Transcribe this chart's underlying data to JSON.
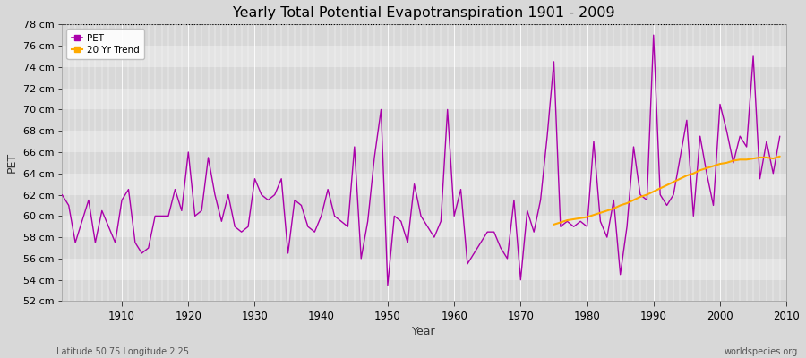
{
  "title": "Yearly Total Potential Evapotranspiration 1901 - 2009",
  "xlabel": "Year",
  "ylabel": "PET",
  "subtitle": "Latitude 50.75 Longitude 2.25",
  "watermark": "worldspecies.org",
  "ylim": [
    52,
    78
  ],
  "yticks": [
    52,
    54,
    56,
    58,
    60,
    62,
    64,
    66,
    68,
    70,
    72,
    74,
    76,
    78
  ],
  "ytick_labels": [
    "52 cm",
    "54 cm",
    "56 cm",
    "58 cm",
    "60 cm",
    "62 cm",
    "64 cm",
    "66 cm",
    "68 cm",
    "70 cm",
    "72 cm",
    "74 cm",
    "76 cm",
    "78 cm"
  ],
  "hline_y": 78,
  "background_color": "#d8d8d8",
  "plot_bg_color": "#d8d8d8",
  "band_colors": [
    "#d8d8d8",
    "#e4e4e4"
  ],
  "pet_color": "#aa00aa",
  "trend_color": "#ffaa00",
  "pet_linewidth": 1.0,
  "trend_linewidth": 1.5,
  "years": [
    1901,
    1902,
    1903,
    1904,
    1905,
    1906,
    1907,
    1908,
    1909,
    1910,
    1911,
    1912,
    1913,
    1914,
    1915,
    1916,
    1917,
    1918,
    1919,
    1920,
    1921,
    1922,
    1923,
    1924,
    1925,
    1926,
    1927,
    1928,
    1929,
    1930,
    1931,
    1932,
    1933,
    1934,
    1935,
    1936,
    1937,
    1938,
    1939,
    1940,
    1941,
    1942,
    1943,
    1944,
    1945,
    1946,
    1947,
    1948,
    1949,
    1950,
    1951,
    1952,
    1953,
    1954,
    1955,
    1956,
    1957,
    1958,
    1959,
    1960,
    1961,
    1962,
    1963,
    1964,
    1965,
    1966,
    1967,
    1968,
    1969,
    1970,
    1971,
    1972,
    1973,
    1974,
    1975,
    1976,
    1977,
    1978,
    1979,
    1980,
    1981,
    1982,
    1983,
    1984,
    1985,
    1986,
    1987,
    1988,
    1989,
    1990,
    1991,
    1992,
    1993,
    1994,
    1995,
    1996,
    1997,
    1998,
    1999,
    2000,
    2001,
    2002,
    2003,
    2004,
    2005,
    2006,
    2007,
    2008,
    2009
  ],
  "pet_values": [
    62.0,
    61.0,
    57.5,
    59.5,
    61.5,
    57.5,
    60.5,
    59.0,
    57.5,
    61.5,
    62.5,
    57.5,
    56.5,
    57.0,
    60.0,
    60.0,
    60.0,
    62.5,
    60.5,
    66.0,
    60.0,
    60.5,
    65.5,
    62.0,
    59.5,
    62.0,
    59.0,
    58.5,
    59.0,
    63.5,
    62.0,
    61.5,
    62.0,
    63.5,
    56.5,
    61.5,
    61.0,
    59.0,
    58.5,
    60.0,
    62.5,
    60.0,
    59.5,
    59.0,
    66.5,
    56.0,
    59.5,
    65.5,
    70.0,
    53.5,
    60.0,
    59.5,
    57.5,
    63.0,
    60.0,
    59.0,
    58.0,
    59.5,
    70.0,
    60.0,
    62.5,
    55.5,
    56.5,
    57.5,
    58.5,
    58.5,
    57.0,
    56.0,
    61.5,
    54.0,
    60.5,
    58.5,
    61.5,
    67.5,
    74.5,
    59.0,
    59.5,
    59.0,
    59.5,
    59.0,
    67.0,
    59.5,
    58.0,
    61.5,
    54.5,
    59.0,
    66.5,
    62.0,
    61.5,
    77.0,
    62.0,
    61.0,
    62.0,
    65.5,
    69.0,
    60.0,
    67.5,
    64.0,
    61.0,
    70.5,
    68.0,
    65.0,
    67.5,
    66.5,
    75.0,
    63.5,
    67.0,
    64.0,
    67.5
  ],
  "trend_values_years": [
    1975,
    1976,
    1977,
    1978,
    1979,
    1980,
    1981,
    1982,
    1983,
    1984,
    1985,
    1986,
    1987,
    1988,
    1989,
    1990,
    1991,
    1992,
    1993,
    1994,
    1995,
    1996,
    1997,
    1998,
    1999,
    2000,
    2001,
    2002,
    2003,
    2004,
    2005,
    2006,
    2007,
    2008,
    2009
  ],
  "trend_values": [
    59.2,
    59.4,
    59.6,
    59.7,
    59.8,
    59.9,
    60.1,
    60.3,
    60.5,
    60.7,
    61.0,
    61.2,
    61.5,
    61.8,
    62.0,
    62.3,
    62.6,
    62.9,
    63.2,
    63.5,
    63.8,
    64.0,
    64.3,
    64.5,
    64.7,
    64.9,
    65.0,
    65.2,
    65.3,
    65.3,
    65.4,
    65.5,
    65.5,
    65.4,
    65.6
  ]
}
